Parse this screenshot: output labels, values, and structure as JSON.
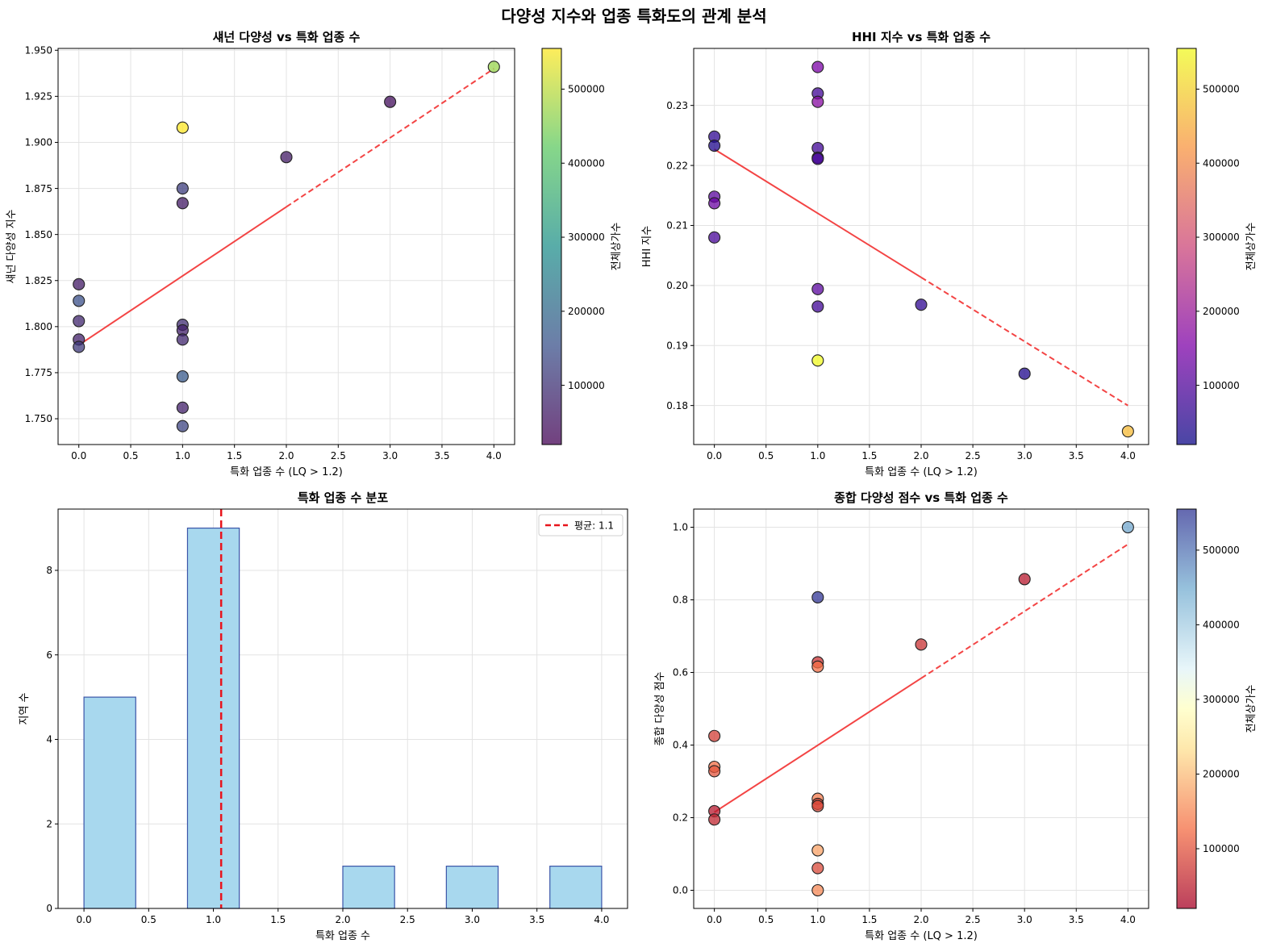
{
  "figure": {
    "title": "다양성 지수와 업종 특화도의 관계 분석"
  },
  "chart_data": [
    {
      "type": "scatter",
      "title": "섀넌 다양성 vs 특화 업종 수",
      "xlabel": "특화 업종 수 (LQ > 1.2)",
      "ylabel": "섀넌 다양성 지수",
      "xlim": [
        -0.2,
        4.2
      ],
      "ylim": [
        1.736,
        1.951
      ],
      "xticks": [
        0.0,
        0.5,
        1.0,
        1.5,
        2.0,
        2.5,
        3.0,
        3.5,
        4.0
      ],
      "yticks": [
        1.75,
        1.775,
        1.8,
        1.825,
        1.85,
        1.875,
        1.9,
        1.925,
        1.95
      ],
      "yprecision": 3,
      "grid": true,
      "colormap": "viridis",
      "colorbar": {
        "label": "전체상가수",
        "range": [
          20000,
          555000
        ],
        "ticks": [
          100000,
          200000,
          300000,
          400000,
          500000
        ]
      },
      "trendline": {
        "x": [
          0,
          4
        ],
        "y": [
          1.79,
          1.94
        ]
      },
      "points": [
        {
          "x": 0,
          "y": 1.823,
          "c": 60000
        },
        {
          "x": 0,
          "y": 1.814,
          "c": 150000
        },
        {
          "x": 0,
          "y": 1.803,
          "c": 80000
        },
        {
          "x": 0,
          "y": 1.793,
          "c": 70000
        },
        {
          "x": 0,
          "y": 1.789,
          "c": 110000
        },
        {
          "x": 1,
          "y": 1.908,
          "c": 555000
        },
        {
          "x": 1,
          "y": 1.875,
          "c": 120000
        },
        {
          "x": 1,
          "y": 1.867,
          "c": 60000
        },
        {
          "x": 1,
          "y": 1.801,
          "c": 90000
        },
        {
          "x": 1,
          "y": 1.798,
          "c": 70000
        },
        {
          "x": 1,
          "y": 1.793,
          "c": 80000
        },
        {
          "x": 1,
          "y": 1.773,
          "c": 170000
        },
        {
          "x": 1,
          "y": 1.756,
          "c": 70000
        },
        {
          "x": 1,
          "y": 1.746,
          "c": 130000
        },
        {
          "x": 2,
          "y": 1.892,
          "c": 60000
        },
        {
          "x": 3,
          "y": 1.922,
          "c": 40000
        },
        {
          "x": 4,
          "y": 1.941,
          "c": 470000
        }
      ]
    },
    {
      "type": "scatter",
      "title": "HHI 지수 vs 특화 업종 수",
      "xlabel": "특화 업종 수 (LQ > 1.2)",
      "ylabel": "HHI 지수",
      "xlim": [
        -0.2,
        4.2
      ],
      "ylim": [
        0.1735,
        0.2395
      ],
      "xticks": [
        0.0,
        0.5,
        1.0,
        1.5,
        2.0,
        2.5,
        3.0,
        3.5,
        4.0
      ],
      "yticks": [
        0.18,
        0.19,
        0.2,
        0.21,
        0.22,
        0.23
      ],
      "yprecision": 2,
      "grid": true,
      "colormap": "plasma",
      "colorbar": {
        "label": "전체상가수",
        "range": [
          20000,
          555000
        ],
        "ticks": [
          100000,
          200000,
          300000,
          400000,
          500000
        ]
      },
      "trendline": {
        "x": [
          0,
          4
        ],
        "y": [
          0.2227,
          0.18
        ]
      },
      "points": [
        {
          "x": 0,
          "y": 0.2248,
          "c": 60000
        },
        {
          "x": 0,
          "y": 0.2233,
          "c": 40000
        },
        {
          "x": 0,
          "y": 0.2148,
          "c": 110000
        },
        {
          "x": 0,
          "y": 0.2137,
          "c": 130000
        },
        {
          "x": 0,
          "y": 0.208,
          "c": 90000
        },
        {
          "x": 1,
          "y": 0.2364,
          "c": 150000
        },
        {
          "x": 1,
          "y": 0.232,
          "c": 80000
        },
        {
          "x": 1,
          "y": 0.2306,
          "c": 170000
        },
        {
          "x": 1,
          "y": 0.2229,
          "c": 80000
        },
        {
          "x": 1,
          "y": 0.2213,
          "c": 70000
        },
        {
          "x": 1,
          "y": 0.2211,
          "c": 90000
        },
        {
          "x": 1,
          "y": 0.1994,
          "c": 110000
        },
        {
          "x": 1,
          "y": 0.1965,
          "c": 80000
        },
        {
          "x": 1,
          "y": 0.1875,
          "c": 555000
        },
        {
          "x": 2,
          "y": 0.1968,
          "c": 60000
        },
        {
          "x": 3,
          "y": 0.1853,
          "c": 40000
        },
        {
          "x": 4,
          "y": 0.1757,
          "c": 470000
        }
      ]
    },
    {
      "type": "bar",
      "title": "특화 업종 수 분포",
      "xlabel": "특화 업종 수",
      "ylabel": "지역 수",
      "xlim": [
        -0.2,
        4.2
      ],
      "ylim": [
        0,
        9.45
      ],
      "xticks": [
        0.0,
        0.5,
        1.0,
        1.5,
        2.0,
        2.5,
        3.0,
        3.5,
        4.0
      ],
      "yticks": [
        0,
        2,
        4,
        6,
        8
      ],
      "yprecision": 0,
      "grid": true,
      "bars": [
        {
          "x0": 0.0,
          "x1": 0.4,
          "count": 5
        },
        {
          "x0": 0.8,
          "x1": 1.2,
          "count": 9
        },
        {
          "x0": 2.0,
          "x1": 2.4,
          "count": 1
        },
        {
          "x0": 2.8,
          "x1": 3.2,
          "count": 1
        },
        {
          "x0": 3.6,
          "x1": 4.0,
          "count": 1
        }
      ],
      "mean_line": {
        "value": 1.06,
        "label": "평균: 1.1"
      },
      "legend": "top-right",
      "bar_color": "#a8d8ee",
      "bar_edge": "#3a54a8"
    },
    {
      "type": "scatter",
      "title": "종합 다양성 점수 vs 특화 업종 수",
      "xlabel": "특화 업종 수 (LQ > 1.2)",
      "ylabel": "종합 다양성 점수",
      "xlim": [
        -0.2,
        4.2
      ],
      "ylim": [
        -0.05,
        1.05
      ],
      "xticks": [
        0.0,
        0.5,
        1.0,
        1.5,
        2.0,
        2.5,
        3.0,
        3.5,
        4.0
      ],
      "yticks": [
        0.0,
        0.2,
        0.4,
        0.6,
        0.8,
        1.0
      ],
      "yprecision": 1,
      "grid": true,
      "colormap": "RdYlBu",
      "colorbar": {
        "label": "전체상가수",
        "range": [
          20000,
          555000
        ],
        "ticks": [
          100000,
          200000,
          300000,
          400000,
          500000
        ]
      },
      "trendline": {
        "x": [
          0,
          4
        ],
        "y": [
          0.215,
          0.953
        ]
      },
      "points": [
        {
          "x": 0,
          "y": 0.425,
          "c": 70000
        },
        {
          "x": 0,
          "y": 0.34,
          "c": 110000
        },
        {
          "x": 0,
          "y": 0.328,
          "c": 90000
        },
        {
          "x": 0,
          "y": 0.218,
          "c": 40000
        },
        {
          "x": 0,
          "y": 0.195,
          "c": 50000
        },
        {
          "x": 1,
          "y": 0.807,
          "c": 555000
        },
        {
          "x": 1,
          "y": 0.628,
          "c": 60000
        },
        {
          "x": 1,
          "y": 0.616,
          "c": 110000
        },
        {
          "x": 1,
          "y": 0.252,
          "c": 120000
        },
        {
          "x": 1,
          "y": 0.238,
          "c": 70000
        },
        {
          "x": 1,
          "y": 0.232,
          "c": 80000
        },
        {
          "x": 1,
          "y": 0.11,
          "c": 150000
        },
        {
          "x": 1,
          "y": 0.061,
          "c": 80000
        },
        {
          "x": 1,
          "y": 0.0,
          "c": 130000
        },
        {
          "x": 2,
          "y": 0.677,
          "c": 60000
        },
        {
          "x": 3,
          "y": 0.857,
          "c": 40000
        },
        {
          "x": 4,
          "y": 1.0,
          "c": 470000
        }
      ]
    }
  ]
}
